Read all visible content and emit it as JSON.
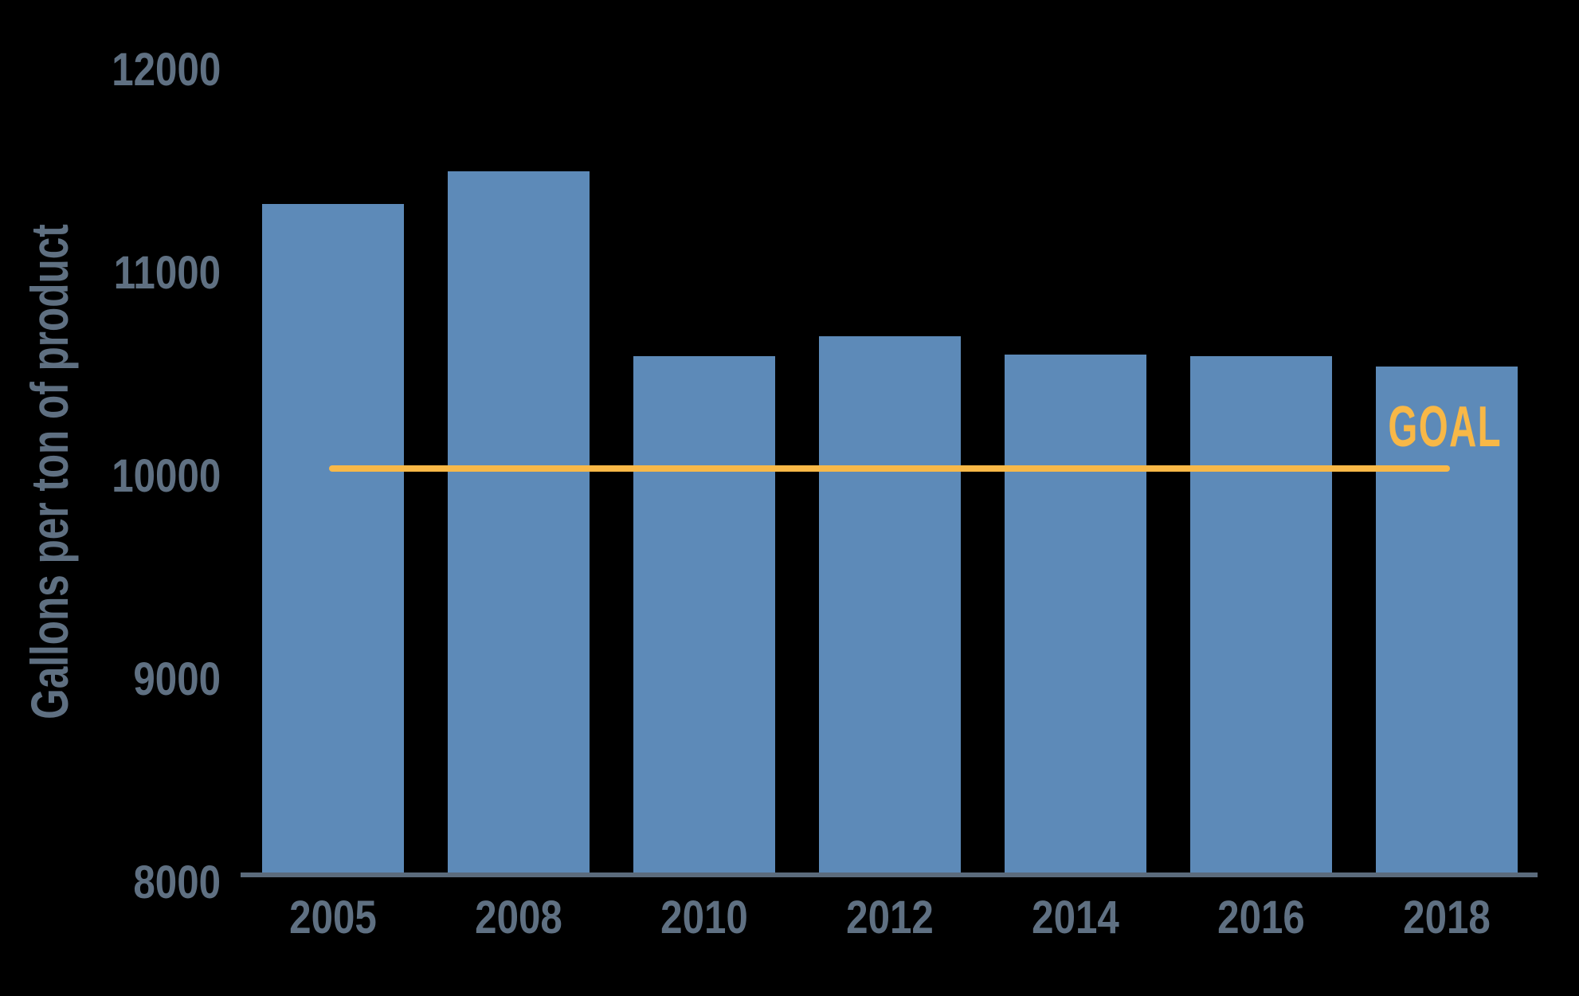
{
  "chart_data": {
    "type": "bar",
    "title": "",
    "categories": [
      "2005",
      "2008",
      "2010",
      "2012",
      "2014",
      "2016",
      "2018"
    ],
    "values": [
      11300,
      11460,
      10550,
      10650,
      10560,
      10550,
      10500
    ],
    "xlabel": "",
    "ylabel": "Gallons per ton of product",
    "ylim": [
      8000,
      12000
    ],
    "yticks": [
      8000,
      9000,
      10000,
      11000,
      12000
    ],
    "grid": false,
    "legend_position": "none",
    "goal_line": {
      "label": "GOAL",
      "value": 10000
    },
    "colors": {
      "background": "#000000",
      "bar": "#5d8ab8",
      "axis_text": "#5f7082",
      "axis_line": "#5b6b7c",
      "goal": "#f8b847"
    }
  }
}
